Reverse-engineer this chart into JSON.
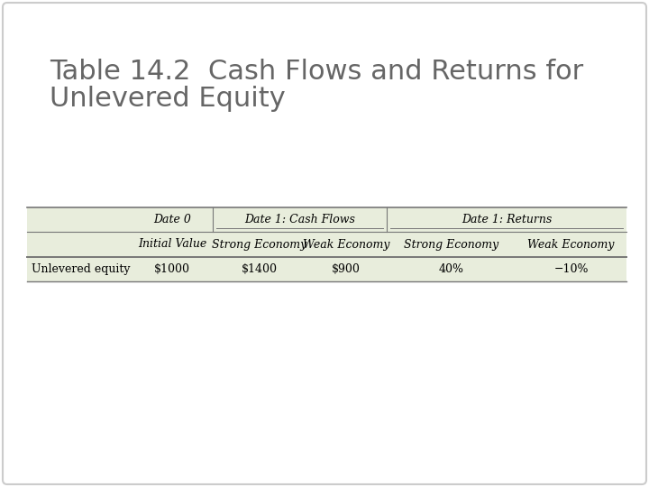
{
  "title_line1": "Table 14.2  Cash Flows and Returns for",
  "title_line2": "Unlevered Equity",
  "title_fontsize": 22,
  "title_color": "#666666",
  "background_color": "#ffffff",
  "outer_border_color": "#cccccc",
  "table_bg_color": "#e8eddc",
  "table_border_color": "#777777",
  "header2": [
    "",
    "Initial Value",
    "Strong Economy",
    "Weak Economy",
    "Strong Economy",
    "Weak Economy"
  ],
  "row": [
    "Unlevered equity",
    "$1000",
    "$1400",
    "$900",
    "40%",
    "−10%"
  ],
  "header_fontsize": 9,
  "data_fontsize": 9
}
